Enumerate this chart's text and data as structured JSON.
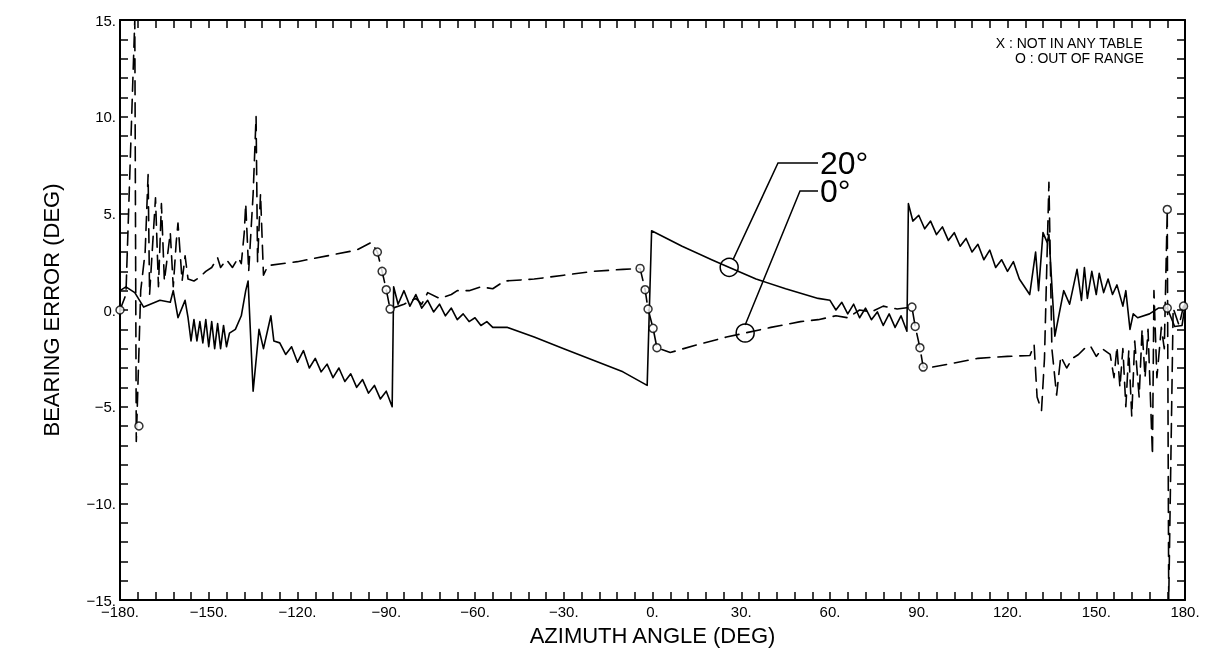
{
  "chart_data": {
    "type": "line",
    "xlabel": "AZIMUTH ANGLE (DEG)",
    "ylabel": "BEARING ERROR (DEG)",
    "annotations": [
      "X : NOT IN ANY TABLE",
      "O : OUT OF RANGE"
    ],
    "xlim": [
      -180,
      180
    ],
    "ylim": [
      -15,
      15
    ],
    "xticks": [
      {
        "value": -180,
        "label": "−180."
      },
      {
        "value": -174,
        "label": null
      },
      {
        "value": -168,
        "label": null
      },
      {
        "value": -162,
        "label": null
      },
      {
        "value": -156,
        "label": null
      },
      {
        "value": -150,
        "label": "−150."
      },
      {
        "value": -144,
        "label": null
      },
      {
        "value": -138,
        "label": null
      },
      {
        "value": -132,
        "label": null
      },
      {
        "value": -126,
        "label": null
      },
      {
        "value": -120,
        "label": "−120."
      },
      {
        "value": -114,
        "label": null
      },
      {
        "value": -108,
        "label": null
      },
      {
        "value": -102,
        "label": null
      },
      {
        "value": -96,
        "label": null
      },
      {
        "value": -90,
        "label": "−90."
      },
      {
        "value": -84,
        "label": null
      },
      {
        "value": -78,
        "label": null
      },
      {
        "value": -72,
        "label": null
      },
      {
        "value": -66,
        "label": null
      },
      {
        "value": -60,
        "label": "−60."
      },
      {
        "value": -54,
        "label": null
      },
      {
        "value": -48,
        "label": null
      },
      {
        "value": -42,
        "label": null
      },
      {
        "value": -36,
        "label": null
      },
      {
        "value": -30,
        "label": "−30."
      },
      {
        "value": -24,
        "label": null
      },
      {
        "value": -18,
        "label": null
      },
      {
        "value": -12,
        "label": null
      },
      {
        "value": -6,
        "label": null
      },
      {
        "value": 0,
        "label": "0."
      },
      {
        "value": 6,
        "label": null
      },
      {
        "value": 12,
        "label": null
      },
      {
        "value": 18,
        "label": null
      },
      {
        "value": 24,
        "label": null
      },
      {
        "value": 30,
        "label": "30."
      },
      {
        "value": 36,
        "label": null
      },
      {
        "value": 42,
        "label": null
      },
      {
        "value": 48,
        "label": null
      },
      {
        "value": 54,
        "label": null
      },
      {
        "value": 60,
        "label": "60."
      },
      {
        "value": 66,
        "label": null
      },
      {
        "value": 72,
        "label": null
      },
      {
        "value": 78,
        "label": null
      },
      {
        "value": 84,
        "label": null
      },
      {
        "value": 90,
        "label": "90."
      },
      {
        "value": 96,
        "label": null
      },
      {
        "value": 102,
        "label": null
      },
      {
        "value": 108,
        "label": null
      },
      {
        "value": 114,
        "label": null
      },
      {
        "value": 120,
        "label": "120."
      },
      {
        "value": 126,
        "label": null
      },
      {
        "value": 132,
        "label": null
      },
      {
        "value": 138,
        "label": null
      },
      {
        "value": 144,
        "label": null
      },
      {
        "value": 150,
        "label": "150."
      },
      {
        "value": 156,
        "label": null
      },
      {
        "value": 162,
        "label": null
      },
      {
        "value": 168,
        "label": null
      },
      {
        "value": 174,
        "label": null
      },
      {
        "value": 180,
        "label": "180."
      }
    ],
    "yticks": [
      {
        "value": -15,
        "label": "−15."
      },
      {
        "value": -14,
        "label": null
      },
      {
        "value": -13,
        "label": null
      },
      {
        "value": -12,
        "label": null
      },
      {
        "value": -11,
        "label": null
      },
      {
        "value": -10,
        "label": "−10."
      },
      {
        "value": -9,
        "label": null
      },
      {
        "value": -8,
        "label": null
      },
      {
        "value": -7,
        "label": null
      },
      {
        "value": -6,
        "label": null
      },
      {
        "value": -5,
        "label": "−5."
      },
      {
        "value": -4,
        "label": null
      },
      {
        "value": -3,
        "label": null
      },
      {
        "value": -2,
        "label": null
      },
      {
        "value": -1,
        "label": null
      },
      {
        "value": 0,
        "label": "0."
      },
      {
        "value": 1,
        "label": null
      },
      {
        "value": 2,
        "label": null
      },
      {
        "value": 3,
        "label": null
      },
      {
        "value": 4,
        "label": null
      },
      {
        "value": 5,
        "label": "5."
      },
      {
        "value": 6,
        "label": null
      },
      {
        "value": 7,
        "label": null
      },
      {
        "value": 8,
        "label": null
      },
      {
        "value": 9,
        "label": null
      },
      {
        "value": 10,
        "label": "10."
      },
      {
        "value": 11,
        "label": null
      },
      {
        "value": 12,
        "label": null
      },
      {
        "value": 13,
        "label": null
      },
      {
        "value": 14,
        "label": null
      },
      {
        "value": 15,
        "label": "15."
      }
    ],
    "grid": false,
    "legend": false,
    "series": [
      {
        "name": "20°",
        "color": "#000000",
        "line_style": "solid",
        "marker": "none",
        "x": [
          -180,
          -178,
          -175,
          -172,
          -166.5,
          -163,
          -162,
          -160.4,
          -158,
          -157,
          -156,
          -155,
          -154,
          -153,
          -152,
          -151,
          -150,
          -149,
          -148,
          -147,
          -146,
          -145,
          -144,
          -143,
          -141,
          -139,
          -137.5,
          -136.7,
          -135,
          -133,
          -131.5,
          -129,
          -128,
          -126,
          -124,
          -122,
          -120,
          -118,
          -116,
          -114,
          -112,
          -110,
          -108,
          -106,
          -104,
          -102,
          -100,
          -98,
          -96,
          -94,
          -92,
          -90,
          -88,
          -87.5,
          -86,
          -84,
          -82,
          -80,
          -78,
          -76,
          -74,
          -72,
          -70,
          -68,
          -66,
          -64,
          -62,
          -60,
          -58,
          -56,
          -54,
          -49,
          -40,
          -30,
          -20,
          -10,
          -1.8,
          -0.3,
          10,
          20,
          26,
          35,
          45,
          56,
          60,
          62,
          64,
          66,
          68,
          70,
          72,
          74,
          76,
          78,
          80,
          82,
          84,
          86,
          86.5,
          88,
          90,
          92,
          94,
          96,
          98,
          100,
          102,
          104,
          106,
          108,
          110,
          112,
          114,
          116,
          118,
          120,
          122,
          124,
          127.5,
          129.5,
          130.5,
          132,
          133.4,
          134,
          136,
          139,
          141,
          143.5,
          145,
          146,
          147,
          148.5,
          150,
          151,
          152.5,
          154,
          155.5,
          157,
          159,
          160,
          161.4,
          162.5,
          164,
          168,
          171,
          174,
          176.5,
          179,
          180
        ],
        "values": [
          1.0,
          1.2,
          0.9,
          0.15,
          0.5,
          0.4,
          1.0,
          -0.4,
          0.5,
          -0.4,
          -1.6,
          -0.5,
          -1.6,
          -0.6,
          -1.7,
          -0.5,
          -1.9,
          -0.6,
          -2.0,
          -0.7,
          -2.0,
          -0.8,
          -1.9,
          -1.2,
          -1.0,
          -0.3,
          1.0,
          1.5,
          -4.2,
          -1.0,
          -2.0,
          -0.3,
          -1.6,
          -1.7,
          -2.3,
          -1.9,
          -2.7,
          -2.1,
          -3.0,
          -2.5,
          -3.2,
          -2.8,
          -3.5,
          -3.0,
          -3.7,
          -3.3,
          -4.0,
          -3.6,
          -4.3,
          -3.9,
          -4.6,
          -4.2,
          -5.0,
          1.2,
          0.3,
          1.0,
          0.2,
          0.8,
          0.1,
          0.5,
          -0.1,
          0.3,
          -0.3,
          0.1,
          -0.5,
          -0.2,
          -0.6,
          -0.4,
          -0.8,
          -0.6,
          -0.9,
          -0.9,
          -1.4,
          -2.0,
          -2.6,
          -3.2,
          -3.9,
          4.1,
          3.3,
          2.6,
          2.2,
          1.6,
          1.1,
          0.6,
          0.5,
          0.0,
          0.4,
          -0.2,
          0.3,
          -0.4,
          0.1,
          -0.5,
          -0.1,
          -0.8,
          -0.2,
          -0.9,
          -0.3,
          -1.1,
          5.5,
          4.6,
          4.9,
          4.2,
          4.6,
          3.9,
          4.3,
          3.6,
          4.0,
          3.3,
          3.7,
          3.0,
          3.4,
          2.6,
          3.1,
          2.2,
          2.6,
          2.0,
          2.5,
          1.6,
          0.8,
          3.0,
          1.0,
          4.0,
          3.5,
          3.9,
          -1.35,
          1.0,
          0.3,
          2.1,
          0.5,
          2.2,
          0.6,
          2.0,
          0.8,
          1.9,
          0.9,
          1.6,
          0.8,
          1.3,
          0.2,
          1.0,
          -1.0,
          -0.2,
          -0.4,
          -0.2,
          0.1,
          0.1,
          -0.85,
          -0.8,
          0.2
        ]
      },
      {
        "name": "0°",
        "color": "#000000",
        "line_style": "dashed",
        "marker": "none",
        "x": [
          -180,
          -178,
          -175,
          -174.5,
          -173,
          -171.5,
          -170.5,
          -170,
          -168,
          -167,
          -166,
          -165,
          -163,
          -162,
          -161,
          -160.4,
          -159,
          -158,
          -157,
          -155,
          -153,
          -151,
          -149,
          -147,
          -146,
          -144,
          -142,
          -140,
          -139,
          -138,
          -137.5,
          -136.5,
          -135,
          -134,
          -133.5,
          -132.5,
          -131.5,
          -130,
          -120,
          -110,
          -100,
          -95,
          -93,
          -91.4,
          -90,
          -88.7,
          -84,
          -80,
          -78,
          -76,
          -72,
          -68,
          -66,
          -62,
          -58,
          -54,
          -50,
          -40,
          -30,
          -20,
          -10,
          -4.2,
          -2.5,
          -1.5,
          0.2,
          1.5,
          6,
          15,
          25,
          31,
          40,
          50,
          56,
          62,
          66,
          70,
          74,
          78,
          82.7,
          87.7,
          88.8,
          90.4,
          91.5,
          93,
          100,
          110,
          120,
          127.6,
          129,
          130,
          131.5,
          132.5,
          134,
          135,
          136.6,
          138,
          140,
          142,
          144,
          146,
          148,
          150,
          152,
          154.7,
          156,
          157,
          158,
          159,
          160,
          161,
          162,
          163,
          164.5,
          165.5,
          166.5,
          167.5,
          169,
          169.5,
          170.5,
          172,
          173,
          174,
          174.5,
          176,
          178,
          179.5
        ],
        "values": [
          0,
          0.8,
          15,
          -6.8,
          1.0,
          3.0,
          7.0,
          0.8,
          5.8,
          1.2,
          5.5,
          1.5,
          4.0,
          1.2,
          3.5,
          4.5,
          1.5,
          2.8,
          1.6,
          1.5,
          1.7,
          2.0,
          2.2,
          2.7,
          2.2,
          2.6,
          2.2,
          2.7,
          2.4,
          4.0,
          5.5,
          2.0,
          6.0,
          10.0,
          2.5,
          6.0,
          1.8,
          2.3,
          2.5,
          2.8,
          3.1,
          3.5,
          3.0,
          2.0,
          1.05,
          0.05,
          0.3,
          0.6,
          0.3,
          0.9,
          0.6,
          0.8,
          1.0,
          1.0,
          1.2,
          1.1,
          1.5,
          1.6,
          1.8,
          2.0,
          2.1,
          2.15,
          1.05,
          0.05,
          -0.95,
          -1.95,
          -2.2,
          -1.8,
          -1.4,
          -1.2,
          -0.9,
          -0.6,
          -0.5,
          -0.3,
          -0.4,
          0.0,
          -0.1,
          0.2,
          0.05,
          0.15,
          -0.85,
          -1.95,
          -2.95,
          -3.0,
          -2.8,
          -2.5,
          -2.4,
          -2.35,
          -1.8,
          -4.5,
          -5.2,
          -2.5,
          6.6,
          -2.0,
          -4.4,
          -2.4,
          -3.0,
          -2.5,
          -2.3,
          -2.0,
          -1.85,
          -2.4,
          -2.0,
          -2.3,
          -3.5,
          -1.9,
          -4.0,
          -2.0,
          -5.0,
          -2.1,
          -5.5,
          -1.6,
          -4.5,
          -1.0,
          -3.5,
          -1.0,
          -7.5,
          1.0,
          -3.5,
          -0.9,
          -2.0,
          5.2,
          -15,
          0.1,
          -0.8,
          0.2
        ]
      },
      {
        "type": "scatter",
        "color": "#000000",
        "marker": "circle",
        "x": [
          -180,
          -173.6,
          -93,
          -91.4,
          -90,
          -88.7,
          -4.2,
          -2.5,
          -1.5,
          0.2,
          1.5,
          87.7,
          88.8,
          90.4,
          91.5,
          174,
          174,
          179.5
        ],
        "values": [
          0,
          -6,
          3.0,
          2.0,
          1.05,
          0.05,
          2.15,
          1.05,
          0.05,
          -0.95,
          -1.95,
          0.15,
          -0.85,
          -1.95,
          -2.95,
          5.2,
          0.1,
          0.2
        ]
      }
    ]
  }
}
